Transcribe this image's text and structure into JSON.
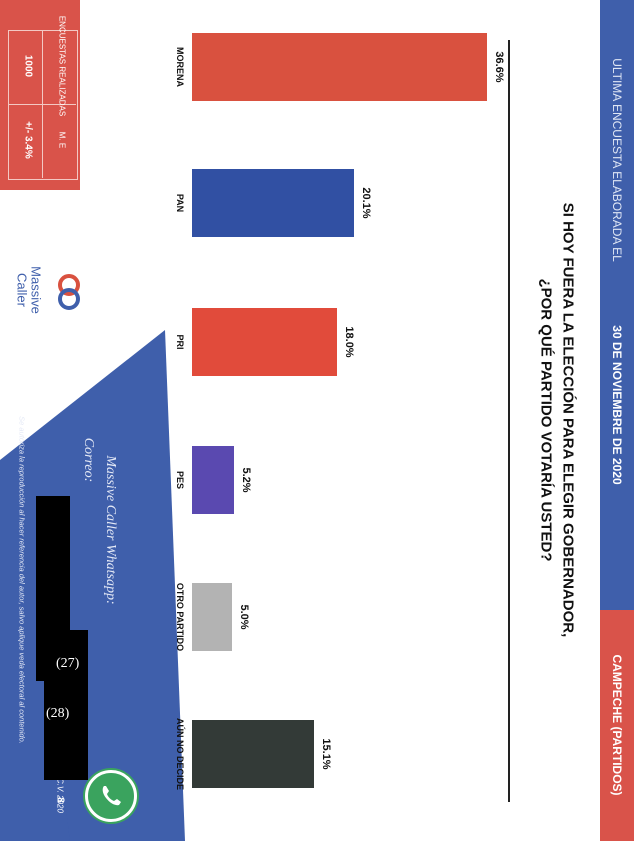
{
  "header": {
    "prefix": "ULTIMA ENCUESTA ELABORADA EL",
    "date": "30 DE NOVIEMBRE DE 2020",
    "region": "CAMPECHE (PARTIDOS)"
  },
  "question": {
    "line1": "SI HOY FUERA LA ELECCIÓN PARA ELEGIR GOBERNADOR,",
    "line2": "¿POR QUÉ PARTIDO VOTARÍA USTED?"
  },
  "badge": {
    "encuestas_label": "ENCUESTAS REALIZADAS",
    "encuestas_value": "1000",
    "me_label": "M. E",
    "me_value": "+/- 3.4%"
  },
  "brand": {
    "line1": "Massive",
    "line2": "Caller"
  },
  "footer": {
    "whatsapp": "Massive Caller Whatsapp:",
    "correo": "Correo:",
    "copyright": "D.R. (C) MASSIVE CALLER S.A DE C.V. 2020",
    "disclaimer": "Se autoriza la reproducción al hacer referencia del autor, salvo aplique veda electoral al contenido.",
    "page_number": "8",
    "mark27": "(27)",
    "mark28": "(28)"
  },
  "chart_data": {
    "type": "bar",
    "title": "SI HOY FUERA LA ELECCIÓN PARA ELEGIR GOBERNADOR, ¿POR QUÉ PARTIDO VOTARÍA USTED?",
    "categories": [
      "MORENA",
      "PAN",
      "PRI",
      "PES",
      "OTRO PARTIDO",
      "AÚN NO DECIDE"
    ],
    "values": [
      36.6,
      20.1,
      18.0,
      5.2,
      5.0,
      15.1
    ],
    "labels": [
      "36.6%",
      "20.1%",
      "18.0%",
      "5.2%",
      "5.0%",
      "15.1%"
    ],
    "colors": [
      "#d9513f",
      "#3150a3",
      "#e14b3b",
      "#5a49b0",
      "#b3b3b3",
      "#333a37"
    ],
    "ylim": [
      0,
      40
    ],
    "grid": false,
    "legend": "none"
  }
}
